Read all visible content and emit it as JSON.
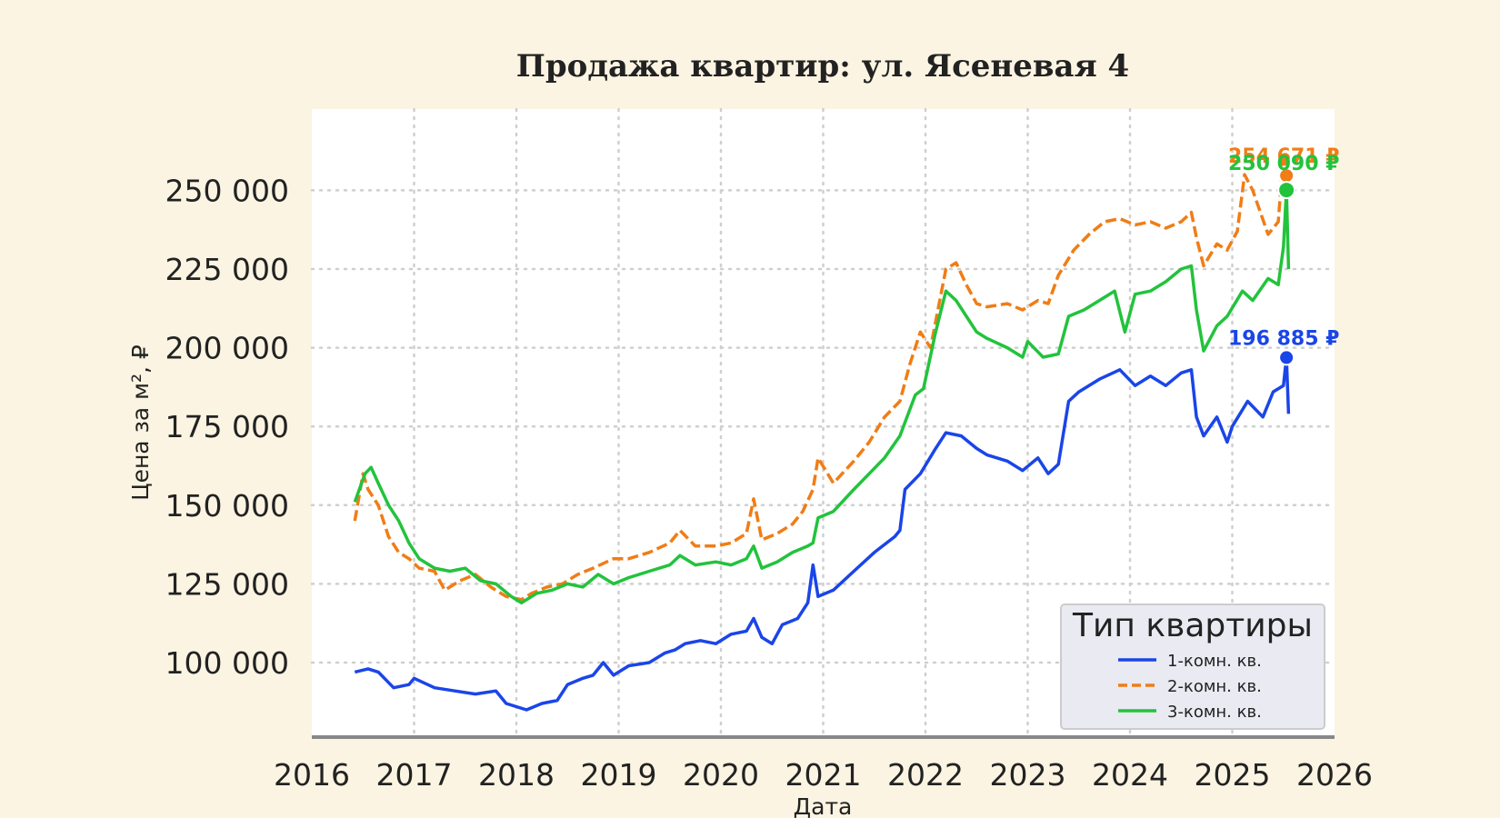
{
  "chart_data": {
    "type": "line",
    "title": "Продажа квартир: ул. Ясеневая 4",
    "xlabel": "Дата",
    "ylabel": "Цена за м², ₽",
    "xlim": [
      2016,
      2026
    ],
    "ylim": [
      85000,
      265000
    ],
    "x_ticks": [
      "2016",
      "2017",
      "2018",
      "2019",
      "2020",
      "2021",
      "2022",
      "2023",
      "2024",
      "2025",
      "2026"
    ],
    "y_ticks": [
      "100 000",
      "125 000",
      "150 000",
      "175 000",
      "200 000",
      "225 000",
      "250 000"
    ],
    "y_tick_values": [
      100000,
      125000,
      150000,
      175000,
      200000,
      225000,
      250000
    ],
    "grid": true,
    "legend": {
      "title": "Тип квартиры",
      "position": "lower-right",
      "labels": [
        "1-комн. кв.",
        "2-комн. кв.",
        "3-комн. кв."
      ]
    },
    "series": [
      {
        "name": "1-комн. кв.",
        "color": "#1a45e8",
        "dash": "solid",
        "end_value": 196885,
        "end_label": "196 885 ₽",
        "x": [
          2016.42,
          2016.55,
          2016.65,
          2016.8,
          2016.95,
          2017.0,
          2017.2,
          2017.4,
          2017.6,
          2017.8,
          2017.9,
          2018.0,
          2018.1,
          2018.25,
          2018.4,
          2018.5,
          2018.65,
          2018.75,
          2018.85,
          2018.95,
          2019.1,
          2019.3,
          2019.45,
          2019.55,
          2019.65,
          2019.8,
          2019.95,
          2020.1,
          2020.25,
          2020.32,
          2020.4,
          2020.5,
          2020.6,
          2020.75,
          2020.85,
          2020.9,
          2020.95,
          2021.1,
          2021.3,
          2021.5,
          2021.7,
          2021.75,
          2021.8,
          2021.95,
          2022.1,
          2022.2,
          2022.35,
          2022.5,
          2022.6,
          2022.8,
          2022.95,
          2023.1,
          2023.2,
          2023.3,
          2023.4,
          2023.5,
          2023.7,
          2023.9,
          2024.05,
          2024.2,
          2024.35,
          2024.5,
          2024.6,
          2024.65,
          2024.72,
          2024.85,
          2024.95,
          2025.0,
          2025.15,
          2025.3,
          2025.4,
          2025.5,
          2025.53,
          2025.55
        ],
        "y": [
          97000,
          98000,
          97000,
          92000,
          93000,
          95000,
          92000,
          91000,
          90000,
          91000,
          87000,
          86000,
          85000,
          87000,
          88000,
          93000,
          95000,
          96000,
          100000,
          96000,
          99000,
          100000,
          103000,
          104000,
          106000,
          107000,
          106000,
          109000,
          110000,
          114000,
          108000,
          106000,
          112000,
          114000,
          119000,
          131000,
          121000,
          123000,
          129000,
          135000,
          140000,
          142000,
          155000,
          160000,
          168000,
          173000,
          172000,
          168000,
          166000,
          164000,
          161000,
          165000,
          160000,
          163000,
          183000,
          186000,
          190000,
          193000,
          188000,
          191000,
          188000,
          192000,
          193000,
          178000,
          172000,
          178000,
          170000,
          175000,
          183000,
          178000,
          186000,
          188000,
          196885,
          179000
        ]
      },
      {
        "name": "2-комн. кв.",
        "color": "#f07d16",
        "dash": "dashed",
        "end_value": 254671,
        "end_label": "254 671 ₽",
        "x": [
          2016.42,
          2016.5,
          2016.55,
          2016.65,
          2016.75,
          2016.85,
          2016.95,
          2017.05,
          2017.2,
          2017.3,
          2017.45,
          2017.6,
          2017.75,
          2017.9,
          2018.05,
          2018.15,
          2018.3,
          2018.45,
          2018.6,
          2018.75,
          2018.95,
          2019.1,
          2019.3,
          2019.5,
          2019.6,
          2019.75,
          2019.95,
          2020.1,
          2020.25,
          2020.32,
          2020.4,
          2020.55,
          2020.7,
          2020.8,
          2020.9,
          2020.95,
          2021.1,
          2021.3,
          2021.45,
          2021.6,
          2021.75,
          2021.85,
          2021.95,
          2022.05,
          2022.2,
          2022.3,
          2022.4,
          2022.5,
          2022.6,
          2022.8,
          2022.95,
          2023.1,
          2023.2,
          2023.3,
          2023.45,
          2023.6,
          2023.75,
          2023.9,
          2024.05,
          2024.2,
          2024.35,
          2024.5,
          2024.6,
          2024.65,
          2024.72,
          2024.85,
          2024.95,
          2025.05,
          2025.12,
          2025.2,
          2025.35,
          2025.45,
          2025.5,
          2025.53,
          2025.55
        ],
        "y": [
          145000,
          160000,
          155000,
          150000,
          140000,
          135000,
          133000,
          130000,
          129000,
          123000,
          126000,
          128000,
          124000,
          121000,
          120000,
          122000,
          124000,
          125000,
          128000,
          130000,
          133000,
          133000,
          135000,
          138000,
          142000,
          137000,
          137000,
          138000,
          141000,
          152000,
          139000,
          141000,
          144000,
          148000,
          155000,
          165000,
          157000,
          164000,
          170000,
          178000,
          183000,
          195000,
          205000,
          200000,
          225000,
          227000,
          220000,
          214000,
          213000,
          214000,
          212000,
          215000,
          214000,
          223000,
          231000,
          236000,
          240000,
          241000,
          239000,
          240000,
          238000,
          240000,
          243000,
          235000,
          226000,
          233000,
          231000,
          237000,
          255000,
          250000,
          236000,
          240000,
          262000,
          254671,
          248000
        ]
      },
      {
        "name": "3-комн. кв.",
        "color": "#22c33c",
        "dash": "solid",
        "end_value": 250090,
        "end_label": "250 090 ₽",
        "x": [
          2016.42,
          2016.52,
          2016.58,
          2016.65,
          2016.75,
          2016.85,
          2016.95,
          2017.05,
          2017.2,
          2017.35,
          2017.5,
          2017.65,
          2017.8,
          2017.95,
          2018.05,
          2018.2,
          2018.35,
          2018.5,
          2018.65,
          2018.8,
          2018.95,
          2019.1,
          2019.3,
          2019.5,
          2019.6,
          2019.75,
          2019.95,
          2020.1,
          2020.25,
          2020.32,
          2020.4,
          2020.55,
          2020.7,
          2020.85,
          2020.9,
          2020.95,
          2021.1,
          2021.3,
          2021.45,
          2021.6,
          2021.75,
          2021.9,
          2021.98,
          2022.1,
          2022.2,
          2022.3,
          2022.4,
          2022.5,
          2022.6,
          2022.8,
          2022.95,
          2023.0,
          2023.15,
          2023.3,
          2023.4,
          2023.55,
          2023.7,
          2023.85,
          2023.95,
          2024.05,
          2024.2,
          2024.35,
          2024.5,
          2024.6,
          2024.65,
          2024.72,
          2024.85,
          2024.95,
          2025.1,
          2025.2,
          2025.35,
          2025.45,
          2025.5,
          2025.53,
          2025.55
        ],
        "y": [
          151000,
          160000,
          162000,
          157000,
          150000,
          145000,
          138000,
          133000,
          130000,
          129000,
          130000,
          126000,
          125000,
          121000,
          119000,
          122000,
          123000,
          125000,
          124000,
          128000,
          125000,
          127000,
          129000,
          131000,
          134000,
          131000,
          132000,
          131000,
          133000,
          137000,
          130000,
          132000,
          135000,
          137000,
          138000,
          146000,
          148000,
          155000,
          160000,
          165000,
          172000,
          185000,
          187000,
          205000,
          218000,
          215000,
          210000,
          205000,
          203000,
          200000,
          197000,
          202000,
          197000,
          198000,
          210000,
          212000,
          215000,
          218000,
          205000,
          217000,
          218000,
          221000,
          225000,
          226000,
          212000,
          199000,
          207000,
          210000,
          218000,
          215000,
          222000,
          220000,
          232000,
          250090,
          225000
        ]
      }
    ]
  }
}
